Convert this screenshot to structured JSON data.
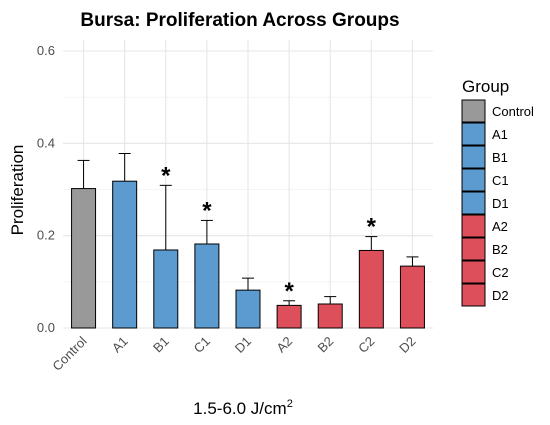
{
  "chart_data": {
    "type": "bar",
    "title": "Bursa: Proliferation Across Groups",
    "xlabel": "1.5-6.0 J/cm",
    "xlabel_superscript": "2",
    "ylabel": "Proliferation",
    "ylim": [
      0,
      0.6
    ],
    "yticks": [
      "0.0",
      "0.2",
      "0.4",
      "0.6"
    ],
    "grid": true,
    "legend_position": "right",
    "legend_title": "Group",
    "categories": [
      "Control",
      "A1",
      "B1",
      "C1",
      "D1",
      "A2",
      "B2",
      "C2",
      "D2"
    ],
    "values": [
      0.302,
      0.318,
      0.169,
      0.182,
      0.082,
      0.049,
      0.052,
      0.168,
      0.134
    ],
    "error_upper": [
      0.363,
      0.378,
      0.309,
      0.233,
      0.108,
      0.059,
      0.068,
      0.198,
      0.154
    ],
    "significant": [
      false,
      false,
      true,
      true,
      false,
      true,
      false,
      true,
      false
    ],
    "significance_marker": "*",
    "colors": {
      "Control": "#999999",
      "A1": "#5b9bd0",
      "B1": "#5b9bd0",
      "C1": "#5b9bd0",
      "D1": "#5b9bd0",
      "A2": "#dd4f5a",
      "B2": "#dd4f5a",
      "C2": "#dd4f5a",
      "D2": "#dd4f5a"
    }
  }
}
